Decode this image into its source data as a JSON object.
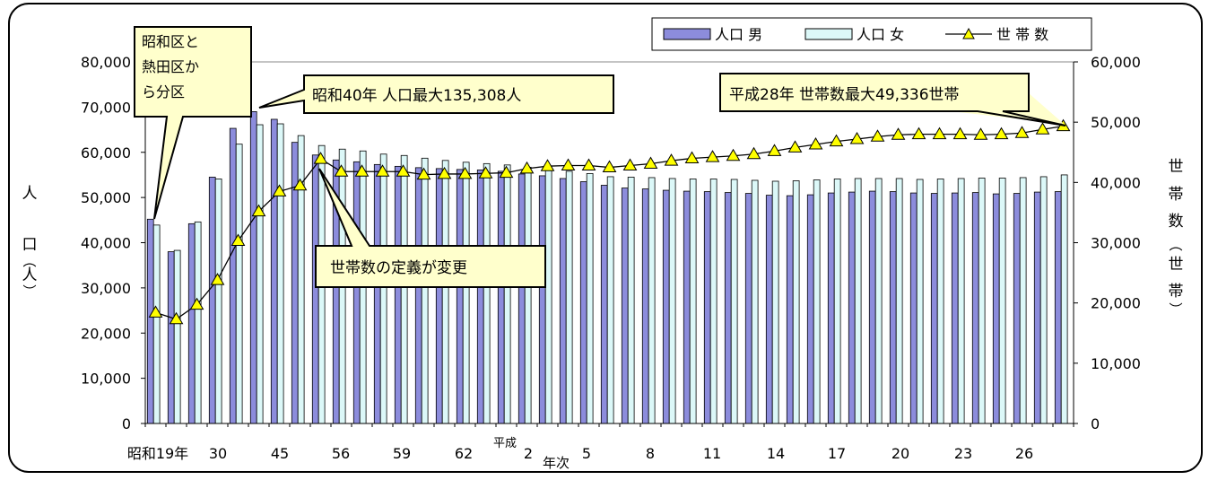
{
  "legend": {
    "male": "人口 男",
    "female": "人口 女",
    "households": "世 帯 数"
  },
  "axes": {
    "left_label_chars": [
      "人",
      "口",
      "︵",
      "人",
      "︶"
    ],
    "right_label_chars": [
      "世",
      "帯",
      "数",
      "︵",
      "世",
      "帯",
      "︶"
    ],
    "x_axis_label": "年次",
    "left_ticks": [
      "0",
      "10,000",
      "20,000",
      "30,000",
      "40,000",
      "50,000",
      "60,000",
      "70,000",
      "80,000"
    ],
    "right_ticks": [
      "0",
      "10,000",
      "20,000",
      "30,000",
      "40,000",
      "50,000",
      "60,000"
    ],
    "x_tick_labels": {
      "showa19": "昭和19年",
      "s30": "30",
      "s45": "45",
      "s56": "56",
      "s59": "59",
      "s62": "62",
      "heisei_prefix": "平成",
      "h2": "2",
      "h5": "5",
      "h8": "8",
      "h11": "11",
      "h14": "14",
      "h17": "17",
      "h20": "20",
      "h23": "23",
      "h26": "26"
    }
  },
  "callouts": {
    "showa_split": [
      "昭和区と",
      "熱田区か",
      "ら分区"
    ],
    "peak_population": "昭和40年 人口最大135,308人",
    "definition_change": "世帯数の定義が変更",
    "peak_households": "平成28年 世帯数最大49,336世帯"
  },
  "colors": {
    "male_bar": "#8c8cdc",
    "female_bar": "#dcf8f8",
    "household_marker": "#ffff00",
    "callout_fill": "#ffffcc"
  },
  "chart_data": {
    "type": "bar",
    "left_axis": {
      "ylim": [
        0,
        80000
      ],
      "step": 10000
    },
    "right_axis": {
      "ylim": [
        0,
        60000
      ],
      "step": 10000
    },
    "x": [
      "昭和19年",
      "",
      "",
      "30",
      "",
      "",
      "45",
      "",
      "",
      "56",
      "",
      "",
      "59",
      "",
      "",
      "62",
      "",
      "",
      "平成2",
      "",
      "",
      "5",
      "",
      "",
      "8",
      "",
      "",
      "11",
      "",
      "",
      "14",
      "",
      "",
      "17",
      "",
      "",
      "20",
      "",
      "",
      "23",
      "",
      "",
      "26",
      "",
      ""
    ],
    "series": [
      {
        "name": "人口 男",
        "axis": "left",
        "type": "bar",
        "values": [
          45200,
          38000,
          44200,
          54500,
          65300,
          69000,
          67300,
          62200,
          59400,
          58300,
          57900,
          57300,
          56900,
          56600,
          56400,
          56200,
          56100,
          55800,
          55200,
          54800,
          54200,
          53500,
          52700,
          52100,
          51900,
          51600,
          51400,
          51300,
          51100,
          50900,
          50500,
          50400,
          50600,
          51000,
          51200,
          51400,
          51300,
          51000,
          50900,
          51000,
          51100,
          50800,
          50900,
          51200,
          51300
        ]
      },
      {
        "name": "人口 女",
        "axis": "left",
        "type": "bar",
        "values": [
          43900,
          38300,
          44600,
          54100,
          61800,
          66100,
          66300,
          63700,
          61500,
          60700,
          60300,
          59600,
          59300,
          58700,
          58200,
          57800,
          57500,
          57200,
          56700,
          56300,
          55800,
          55300,
          54600,
          54500,
          54400,
          54200,
          54100,
          54100,
          54000,
          53800,
          53600,
          53700,
          53900,
          54100,
          54200,
          54200,
          54200,
          54000,
          54100,
          54200,
          54300,
          54300,
          54400,
          54600,
          55000
        ]
      },
      {
        "name": "世 帯 数",
        "axis": "right",
        "type": "line",
        "values": [
          18400,
          17300,
          19700,
          23800,
          30300,
          35200,
          38500,
          39500,
          43900,
          41800,
          41800,
          41800,
          41800,
          41300,
          41400,
          41400,
          41500,
          41600,
          42300,
          42700,
          42800,
          42800,
          42500,
          42800,
          43100,
          43600,
          44000,
          44200,
          44400,
          44700,
          45200,
          45800,
          46300,
          46800,
          47200,
          47600,
          47900,
          48000,
          48000,
          48000,
          47900,
          48000,
          48200,
          48800,
          49336
        ]
      }
    ]
  }
}
